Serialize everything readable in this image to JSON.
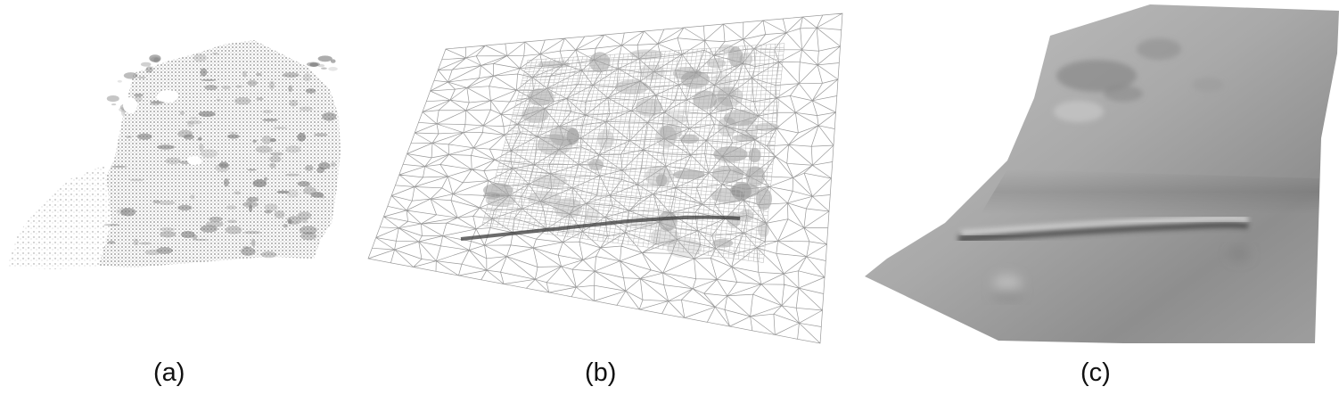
{
  "panels": [
    {
      "id": "a",
      "caption": "(a)"
    },
    {
      "id": "b",
      "caption": "(b)"
    },
    {
      "id": "c",
      "caption": "(c)"
    }
  ]
}
